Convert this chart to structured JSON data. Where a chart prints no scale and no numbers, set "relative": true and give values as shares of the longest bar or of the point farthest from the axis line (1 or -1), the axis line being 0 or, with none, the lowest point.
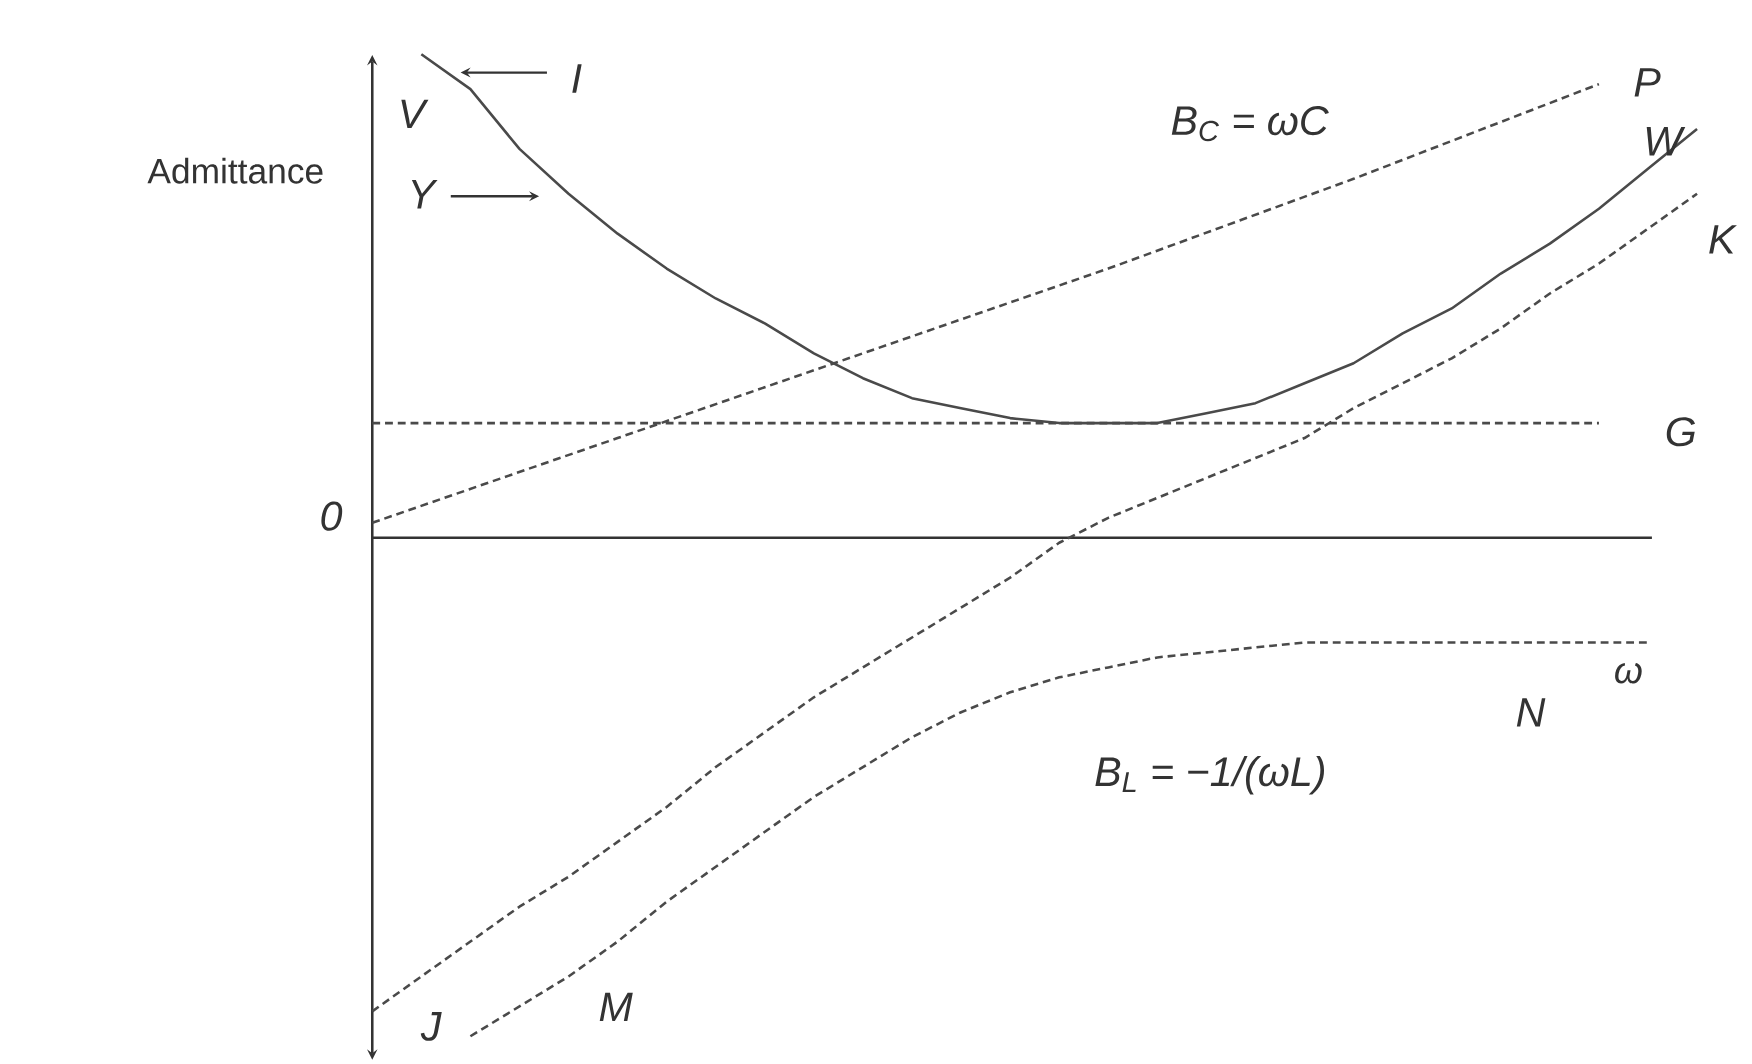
{
  "chart_data": {
    "type": "line",
    "relative": true,
    "xlabel": "ω",
    "ylabel": "Admittance",
    "categories": [
      null,
      null,
      null,
      null,
      null,
      null,
      null,
      null,
      null,
      null,
      null,
      null,
      null,
      null,
      null,
      null,
      null,
      null,
      null,
      null,
      null,
      null,
      null,
      null,
      null,
      null,
      null,
      null
    ],
    "series": [
      {
        "name": "P",
        "color": "#4a4a4a",
        "line_style": "dashed",
        "values": [
          0.03,
          null,
          null,
          null,
          null,
          0.2,
          null,
          null,
          null,
          null,
          0.37,
          null,
          null,
          null,
          null,
          0.54,
          null,
          null,
          null,
          null,
          0.72,
          null,
          null,
          null,
          null,
          0.91,
          null,
          null
        ]
      },
      {
        "name": "W",
        "color": "#4a4a4a",
        "line_style": "solid",
        "values": [
          null,
          0.97,
          0.9,
          0.78,
          0.69,
          0.61,
          0.54,
          0.48,
          0.43,
          0.37,
          0.32,
          0.28,
          0.26,
          0.24,
          0.23,
          0.23,
          0.23,
          0.25,
          0.27,
          0.31,
          0.35,
          0.41,
          0.46,
          0.53,
          0.59,
          0.66,
          0.74,
          0.82
        ]
      },
      {
        "name": "K",
        "color": "#4a4a4a",
        "line_style": "dashed",
        "values": [
          -0.95,
          -0.88,
          -0.81,
          -0.74,
          -0.68,
          -0.61,
          -0.54,
          -0.46,
          -0.39,
          -0.32,
          -0.26,
          -0.2,
          -0.14,
          -0.08,
          -0.01,
          0.04,
          0.08,
          0.12,
          0.16,
          0.2,
          0.26,
          0.31,
          0.36,
          0.42,
          0.49,
          0.55,
          0.62,
          0.69
        ]
      },
      {
        "name": "G",
        "color": "#4a4a4a",
        "line_style": "dashed",
        "values": [
          0.23,
          null,
          null,
          null,
          null,
          null,
          null,
          null,
          null,
          null,
          null,
          null,
          null,
          null,
          null,
          null,
          null,
          null,
          null,
          null,
          null,
          null,
          null,
          null,
          null,
          0.23,
          null,
          null
        ]
      },
      {
        "name": "N",
        "color": "#4a4a4a",
        "line_style": "dashed",
        "values": [
          null,
          null,
          -1.0,
          -0.94,
          -0.88,
          -0.81,
          -0.73,
          -0.66,
          -0.59,
          -0.52,
          -0.46,
          -0.4,
          -0.35,
          -0.31,
          -0.28,
          -0.26,
          -0.24,
          -0.23,
          -0.22,
          -0.21,
          -0.21,
          -0.21,
          -0.21,
          -0.21,
          -0.21,
          -0.21,
          -0.21,
          null
        ]
      }
    ],
    "annotations": [
      "V",
      "I",
      "Y",
      "0",
      "B$_{C}$ = ωC",
      "J",
      "M",
      "B$_{L}$ = −1/(ωL)"
    ]
  }
}
